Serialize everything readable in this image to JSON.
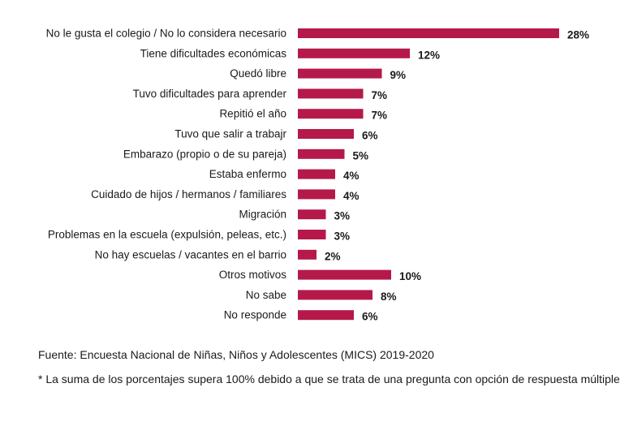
{
  "chart_data": {
    "type": "bar",
    "orientation": "horizontal",
    "title": "",
    "xlabel": "",
    "ylabel": "",
    "xlim": [
      0,
      28
    ],
    "grid": false,
    "bar_color": "#b5194a",
    "categories": [
      "No le gusta el colegio / No lo considera necesario",
      "Tiene dificultades económicas",
      "Quedó libre",
      "Tuvo dificultades para aprender",
      "Repitió el año",
      "Tuvo que salir a trabajr",
      "Embarazo (propio o de su pareja)",
      "Estaba enfermo",
      "Cuidado de hijos / hermanos / familiares",
      "Migración",
      "Problemas en la escuela (expulsión, peleas, etc.)",
      "No hay escuelas / vacantes en el barrio",
      "Otros motivos",
      "No sabe",
      "No responde"
    ],
    "values": [
      28,
      12,
      9,
      7,
      7,
      6,
      5,
      4,
      4,
      3,
      3,
      2,
      10,
      8,
      6
    ],
    "value_labels": [
      "28%",
      "12%",
      "9%",
      "7%",
      "7%",
      "6%",
      "5%",
      "4%",
      "4%",
      "3%",
      "3%",
      "2%",
      "10%",
      "8%",
      "6%"
    ]
  },
  "footer": {
    "source": "Fuente: Encuesta Nacional de Niñas, Niños y Adolescentes (MICS) 2019-2020",
    "note": "* La suma de los porcentajes supera 100% debido a que se trata de una pregunta con opción de respuesta múltiple"
  }
}
